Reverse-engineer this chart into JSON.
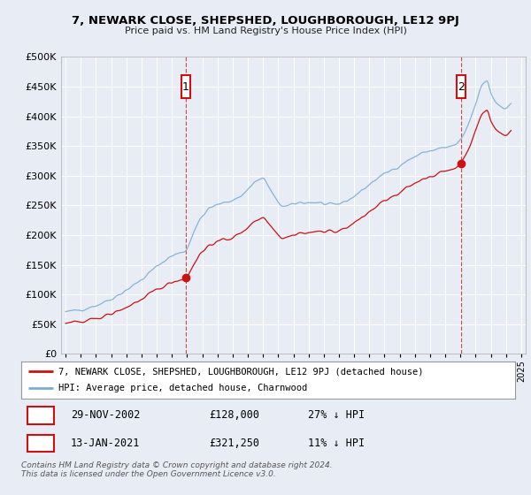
{
  "title": "7, NEWARK CLOSE, SHEPSHED, LOUGHBOROUGH, LE12 9PJ",
  "subtitle": "Price paid vs. HM Land Registry's House Price Index (HPI)",
  "legend_line1": "7, NEWARK CLOSE, SHEPSHED, LOUGHBOROUGH, LE12 9PJ (detached house)",
  "legend_line2": "HPI: Average price, detached house, Charnwood",
  "sale1_date": "29-NOV-2002",
  "sale1_price": "£128,000",
  "sale1_hpi": "27% ↓ HPI",
  "sale2_date": "13-JAN-2021",
  "sale2_price": "£321,250",
  "sale2_hpi": "11% ↓ HPI",
  "footer": "Contains HM Land Registry data © Crown copyright and database right 2024.\nThis data is licensed under the Open Government Licence v3.0.",
  "hpi_color": "#7aadd4",
  "property_color": "#cc1111",
  "sale_marker_color": "#cc1111",
  "vline_color": "#cc2222",
  "background_color": "#e8edf5",
  "plot_bg": "#e8edf5",
  "ylim": [
    0,
    500000
  ],
  "yticks": [
    0,
    50000,
    100000,
    150000,
    200000,
    250000,
    300000,
    350000,
    400000,
    450000,
    500000
  ],
  "xlim_start": 1994.7,
  "xlim_end": 2025.3,
  "sale1_x": 2002.91,
  "sale2_x": 2021.04,
  "sale1_y": 128000,
  "sale2_y": 321250
}
